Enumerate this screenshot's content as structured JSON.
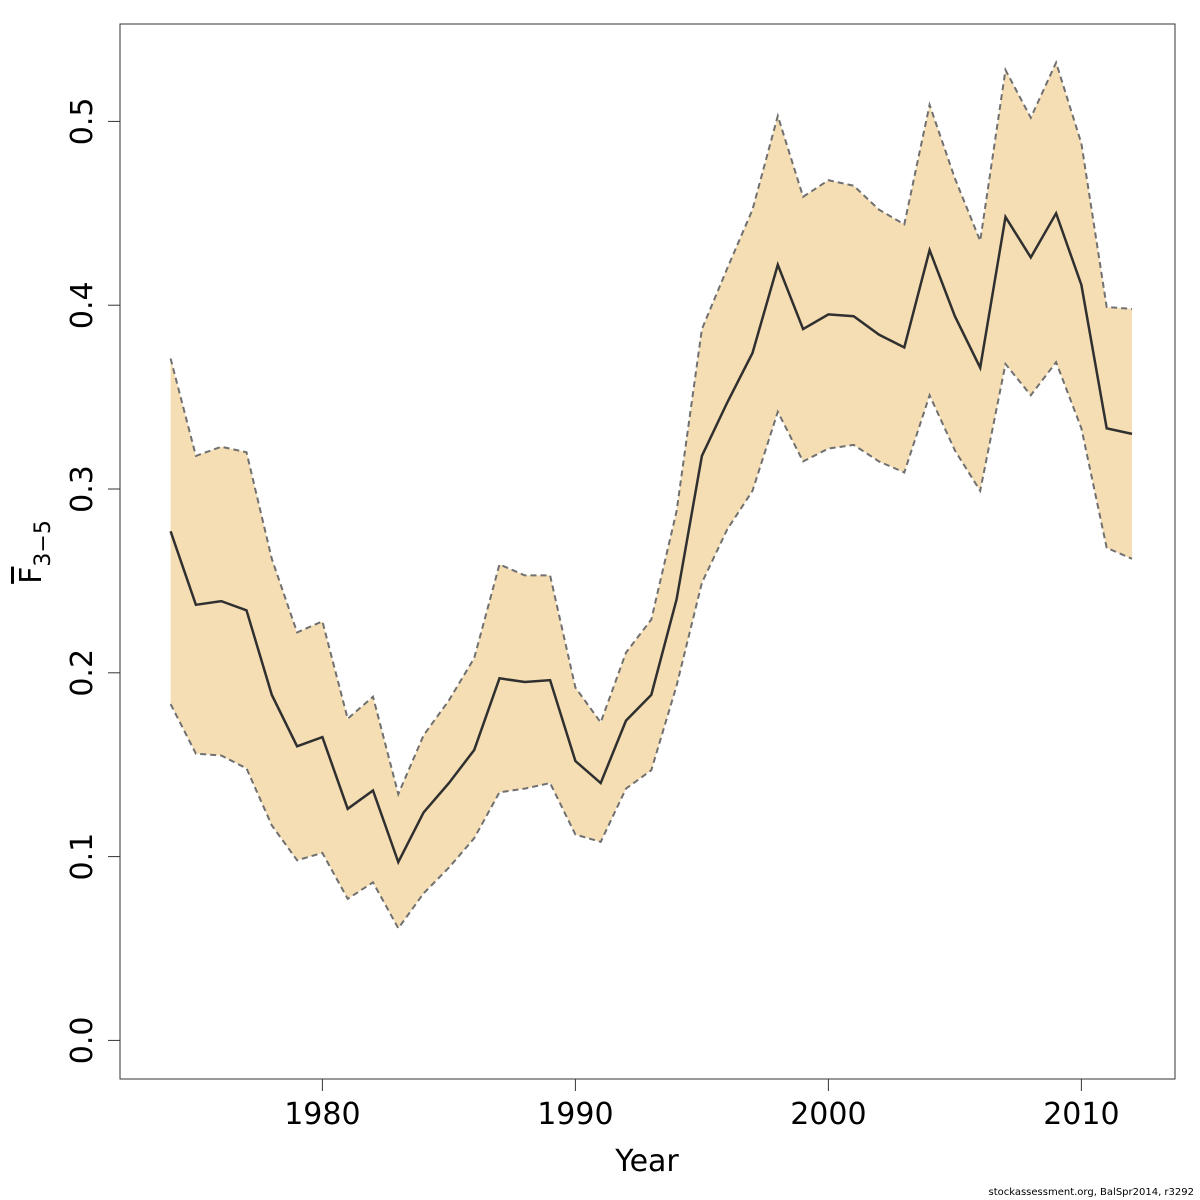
{
  "chart_data": {
    "type": "line",
    "title": "",
    "xlabel": "Year",
    "ylabel_main": "F",
    "ylabel_sub": "3−5",
    "xlim": [
      1972.0,
      2013.7
    ],
    "ylim": [
      -0.021,
      0.553
    ],
    "xticks": [
      1980,
      1990,
      2000,
      2010
    ],
    "xtick_labels": [
      "1980",
      "1990",
      "2000",
      "2010"
    ],
    "yticks": [
      0.0,
      0.1,
      0.2,
      0.3,
      0.4,
      0.5
    ],
    "ytick_labels": [
      "0.0",
      "0.1",
      "0.2",
      "0.3",
      "0.4",
      "0.5"
    ],
    "x": [
      1974,
      1975,
      1976,
      1977,
      1978,
      1979,
      1980,
      1981,
      1982,
      1983,
      1984,
      1985,
      1986,
      1987,
      1988,
      1989,
      1990,
      1991,
      1992,
      1993,
      1994,
      1995,
      1996,
      1997,
      1998,
      1999,
      2000,
      2001,
      2002,
      2003,
      2004,
      2005,
      2006,
      2007,
      2008,
      2009,
      2010,
      2011,
      2012
    ],
    "series": [
      {
        "name": "estimate",
        "values": [
          0.277,
          0.237,
          0.239,
          0.234,
          0.188,
          0.16,
          0.165,
          0.126,
          0.136,
          0.097,
          0.124,
          0.14,
          0.158,
          0.197,
          0.195,
          0.196,
          0.152,
          0.14,
          0.174,
          0.188,
          0.24,
          0.318,
          0.347,
          0.374,
          0.422,
          0.387,
          0.395,
          0.394,
          0.384,
          0.377,
          0.43,
          0.394,
          0.366,
          0.448,
          0.426,
          0.45,
          0.411,
          0.333,
          0.33
        ]
      },
      {
        "name": "upper",
        "values": [
          0.371,
          0.318,
          0.323,
          0.32,
          0.262,
          0.222,
          0.228,
          0.175,
          0.187,
          0.134,
          0.166,
          0.185,
          0.208,
          0.259,
          0.253,
          0.253,
          0.192,
          0.173,
          0.211,
          0.229,
          0.288,
          0.387,
          0.42,
          0.452,
          0.503,
          0.459,
          0.468,
          0.465,
          0.452,
          0.444,
          0.509,
          0.469,
          0.435,
          0.528,
          0.502,
          0.532,
          0.488,
          0.399,
          0.398
        ]
      },
      {
        "name": "lower",
        "values": [
          0.183,
          0.156,
          0.155,
          0.148,
          0.117,
          0.098,
          0.102,
          0.077,
          0.086,
          0.061,
          0.08,
          0.094,
          0.11,
          0.135,
          0.137,
          0.14,
          0.112,
          0.108,
          0.137,
          0.147,
          0.193,
          0.249,
          0.278,
          0.299,
          0.342,
          0.315,
          0.322,
          0.324,
          0.315,
          0.309,
          0.351,
          0.321,
          0.299,
          0.368,
          0.351,
          0.369,
          0.333,
          0.268,
          0.262
        ]
      }
    ],
    "band_color": "#F5DEB3",
    "line_color": "#303030",
    "bound_color": "#707070"
  },
  "footer": "stockassessment.org, BalSpr2014, r3292"
}
